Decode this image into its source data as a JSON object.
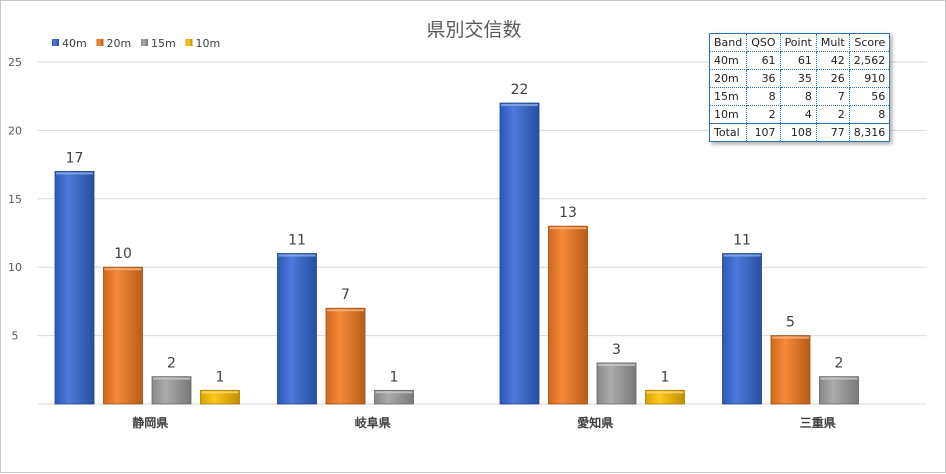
{
  "chart_data": {
    "type": "bar",
    "title": "県別交信数",
    "xlabel": "",
    "ylabel": "",
    "categories": [
      "静岡県",
      "岐阜県",
      "愛知県",
      "三重県"
    ],
    "series": [
      {
        "name": "40m",
        "color": "#3468d6",
        "values": [
          17,
          11,
          22,
          11
        ]
      },
      {
        "name": "20m",
        "color": "#f47a1f",
        "values": [
          10,
          7,
          13,
          5
        ]
      },
      {
        "name": "15m",
        "color": "#a0a0a0",
        "values": [
          2,
          1,
          3,
          2
        ]
      },
      {
        "name": "10m",
        "color": "#ffc000",
        "values": [
          1,
          null,
          1,
          null
        ]
      }
    ],
    "ylim": [
      0,
      25
    ],
    "yticks": [
      5,
      10,
      15,
      20,
      25
    ],
    "grid": true,
    "legend_position": "top-left",
    "data_labels": true
  },
  "summary_table": {
    "headers": [
      "Band",
      "QSO",
      "Point",
      "Mult",
      "Score"
    ],
    "rows": [
      [
        "40m",
        "61",
        "61",
        "42",
        "2,562"
      ],
      [
        "20m",
        "36",
        "35",
        "26",
        "910"
      ],
      [
        "15m",
        "8",
        "8",
        "7",
        "56"
      ],
      [
        "10m",
        "2",
        "4",
        "2",
        "8"
      ]
    ],
    "total": [
      "Total",
      "107",
      "108",
      "77",
      "8,316"
    ]
  }
}
